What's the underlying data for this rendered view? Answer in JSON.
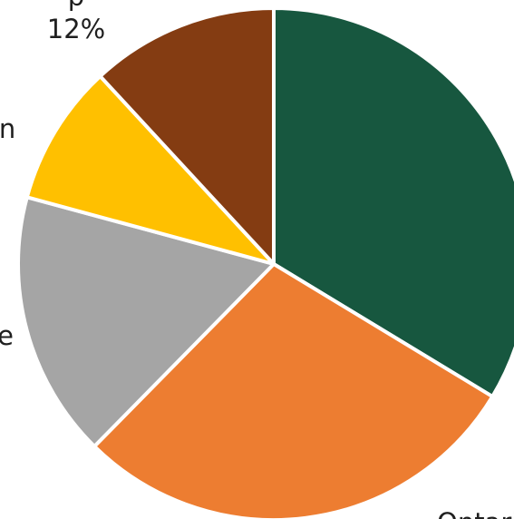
{
  "chart_data": {
    "type": "pie",
    "title": "",
    "start_angle_deg": 0,
    "direction": "clockwise",
    "slices": [
      {
        "label": "Ontario",
        "value": 34,
        "color": "#17573F"
      },
      {
        "label": "",
        "value": 29,
        "color": "#ED7D31"
      },
      {
        "label": "",
        "value": 17,
        "color": "#A5A5A5"
      },
      {
        "label": "",
        "value": 9,
        "color": "#FFC000"
      },
      {
        "label": "",
        "value": 12,
        "color": "#843C12"
      }
    ],
    "visible_text": {
      "percent_label": "12%",
      "partial_label_left_upper": "n",
      "partial_label_left_lower": "e",
      "partial_label_top": "p"
    }
  }
}
